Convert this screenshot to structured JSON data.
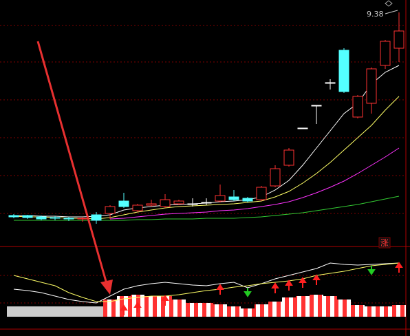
{
  "chart_data": {
    "type": "candlestick",
    "open": [
      6.43,
      6.43,
      6.41,
      6.4,
      6.39,
      6.38,
      6.44,
      6.46,
      6.64,
      6.5,
      6.58,
      6.56,
      6.6,
      6.6,
      6.62,
      6.64,
      6.7,
      6.68,
      6.66,
      6.86,
      7.16,
      7.7,
      8.03,
      8.36,
      8.83,
      7.86,
      8.06,
      8.61,
      8.86
    ],
    "high": [
      6.45,
      6.44,
      6.43,
      6.42,
      6.41,
      6.41,
      6.48,
      6.58,
      6.76,
      6.6,
      6.66,
      6.74,
      6.66,
      6.68,
      6.68,
      6.88,
      6.8,
      6.7,
      6.86,
      7.16,
      7.41,
      7.7,
      8.03,
      8.41,
      8.86,
      8.18,
      8.58,
      8.98,
      9.38
    ],
    "low": [
      6.39,
      6.38,
      6.36,
      6.36,
      6.35,
      6.34,
      6.31,
      6.38,
      6.54,
      6.48,
      6.56,
      6.54,
      6.58,
      6.56,
      6.58,
      6.62,
      6.64,
      6.62,
      6.64,
      6.84,
      7.14,
      7.7,
      7.76,
      8.26,
      8.21,
      7.84,
      7.91,
      8.56,
      8.66
    ],
    "close": [
      6.41,
      6.4,
      6.38,
      6.39,
      6.38,
      6.39,
      6.36,
      6.56,
      6.56,
      6.58,
      6.6,
      6.66,
      6.64,
      6.6,
      6.62,
      6.72,
      6.66,
      6.64,
      6.84,
      7.11,
      7.38,
      7.7,
      8.03,
      8.36,
      8.23,
      8.16,
      8.56,
      8.96,
      9.11
    ],
    "up_color": "#ff3232",
    "down_color": "#54ffff",
    "flat_color": "#ffffff",
    "ylim": [
      6.16,
      9.56
    ],
    "moving_averages": [
      {
        "color": "#ffffff",
        "values": [
          6.43,
          6.43,
          6.42,
          6.42,
          6.41,
          6.41,
          6.42,
          6.44,
          6.51,
          6.54,
          6.56,
          6.58,
          6.59,
          6.6,
          6.61,
          6.63,
          6.64,
          6.66,
          6.7,
          6.8,
          6.94,
          7.16,
          7.41,
          7.66,
          7.91,
          8.06,
          8.34,
          8.51,
          8.61
        ]
      },
      {
        "color": "#ffff66",
        "values": [
          6.42,
          6.41,
          6.41,
          6.4,
          6.39,
          6.39,
          6.38,
          6.4,
          6.44,
          6.48,
          6.51,
          6.54,
          6.56,
          6.57,
          6.58,
          6.59,
          6.6,
          6.62,
          6.64,
          6.7,
          6.78,
          6.9,
          7.04,
          7.2,
          7.38,
          7.56,
          7.74,
          7.96,
          8.16
        ]
      },
      {
        "color": "#ff33ff",
        "values": [
          null,
          null,
          null,
          null,
          null,
          null,
          null,
          6.38,
          6.39,
          6.41,
          6.43,
          6.45,
          6.46,
          6.47,
          6.48,
          6.5,
          6.51,
          6.53,
          6.56,
          6.59,
          6.63,
          6.69,
          6.76,
          6.84,
          6.93,
          7.04,
          7.16,
          7.28,
          7.41
        ]
      },
      {
        "color": "#33cc33",
        "values": [
          6.36,
          6.36,
          6.36,
          6.36,
          6.36,
          6.36,
          6.36,
          6.36,
          6.36,
          6.37,
          6.37,
          6.38,
          6.38,
          6.38,
          6.39,
          6.39,
          6.39,
          6.4,
          6.41,
          6.43,
          6.45,
          6.47,
          6.5,
          6.53,
          6.56,
          6.59,
          6.63,
          6.67,
          6.71
        ]
      }
    ],
    "indicator": {
      "label": "涨",
      "ylim": [
        0,
        100
      ],
      "bars": [
        15,
        15,
        15,
        15,
        15,
        15,
        15,
        25,
        30,
        32,
        30,
        30,
        25,
        20,
        20,
        18,
        15,
        12,
        18,
        22,
        28,
        30,
        32,
        30,
        25,
        17,
        15,
        15,
        17
      ],
      "lines": [
        {
          "color": "#ffffff",
          "values": [
            40,
            38,
            35,
            30,
            25,
            22,
            20,
            30,
            40,
            45,
            48,
            50,
            48,
            46,
            45,
            48,
            50,
            42,
            48,
            55,
            60,
            65,
            70,
            78,
            76,
            75,
            76,
            77,
            78
          ]
        },
        {
          "color": "#ffff66",
          "values": [
            60,
            55,
            50,
            45,
            35,
            28,
            22,
            22,
            26,
            28,
            30,
            30,
            32,
            35,
            38,
            40,
            43,
            45,
            48,
            50,
            52,
            55,
            60,
            63,
            66,
            70,
            74,
            76,
            78
          ]
        }
      ]
    }
  }
}
